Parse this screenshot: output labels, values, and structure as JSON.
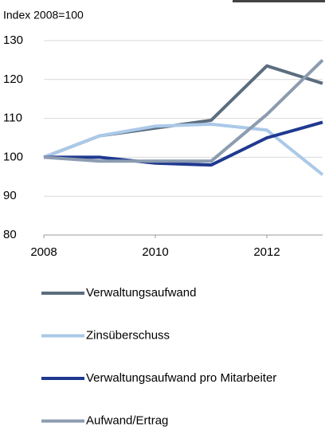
{
  "chart_data": {
    "type": "line",
    "y_axis_label": "Index 2008=100",
    "x": [
      2008,
      2009,
      2010,
      2011,
      2012,
      2013
    ],
    "xlim": [
      2008,
      2013
    ],
    "xticks": [
      2008,
      2010,
      2012
    ],
    "ylim": [
      80,
      130
    ],
    "yticks": [
      80,
      90,
      100,
      110,
      120,
      130
    ],
    "grid": true,
    "series": [
      {
        "name": "Verwaltungsaufwand",
        "color": "#5b6d7e",
        "values": [
          100,
          105.5,
          107.5,
          109.5,
          123.5,
          119
        ]
      },
      {
        "name": "Zinsüberschuss",
        "color": "#abc9e8",
        "values": [
          100,
          105.5,
          108,
          108.5,
          107,
          95.5
        ]
      },
      {
        "name": "Verwaltungsaufwand pro Mitarbeiter",
        "color": "#1f3990",
        "values": [
          100,
          100,
          98.5,
          98,
          105,
          109
        ]
      },
      {
        "name": "Aufwand/Ertrag",
        "color": "#8c9cb0",
        "values": [
          100,
          99,
          99,
          99,
          111,
          125
        ]
      }
    ]
  }
}
